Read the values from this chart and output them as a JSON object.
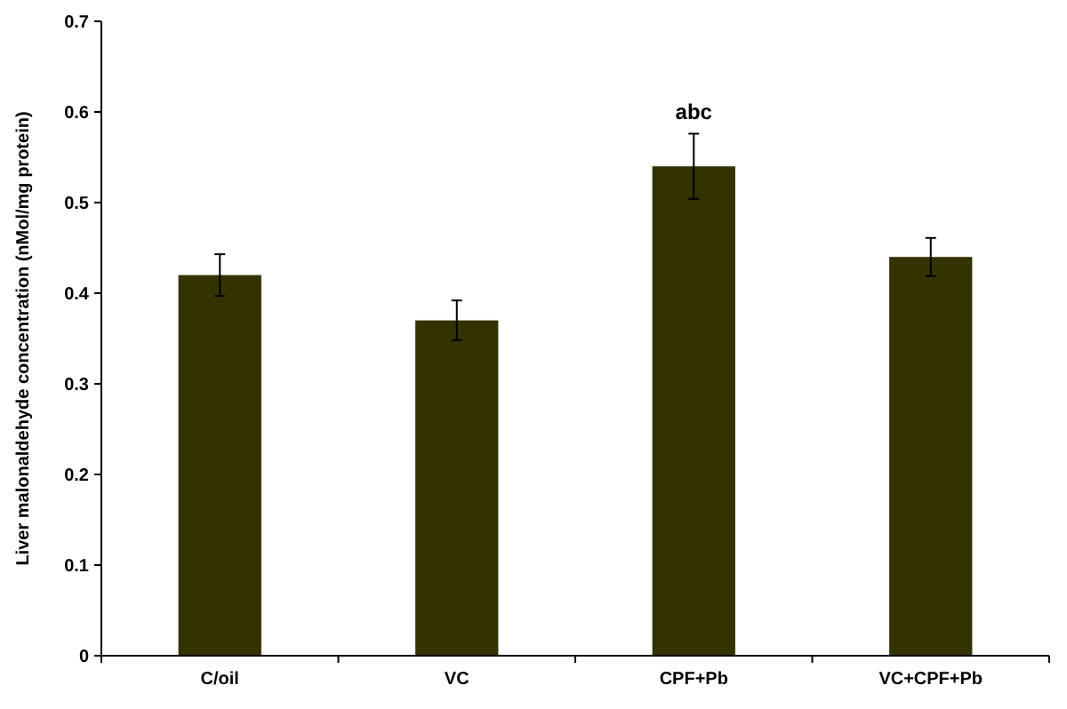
{
  "chart_data": {
    "type": "bar",
    "ylabel": "Liver malonaldehyde concentration (nMol/mg protein)",
    "categories": [
      "C/oil",
      "VC",
      "CPF+Pb",
      "VC+CPF+Pb"
    ],
    "values": [
      0.42,
      0.37,
      0.54,
      0.44
    ],
    "errors": [
      0.023,
      0.022,
      0.036,
      0.021
    ],
    "color": "#333300",
    "ylim": [
      0,
      0.7
    ],
    "yticks": [
      0,
      0.1,
      0.2,
      0.3,
      0.4,
      0.5,
      0.6,
      0.7
    ],
    "annotations": [
      {
        "text": "abc",
        "x": "CPF+Pb",
        "y": 0.54
      }
    ]
  }
}
